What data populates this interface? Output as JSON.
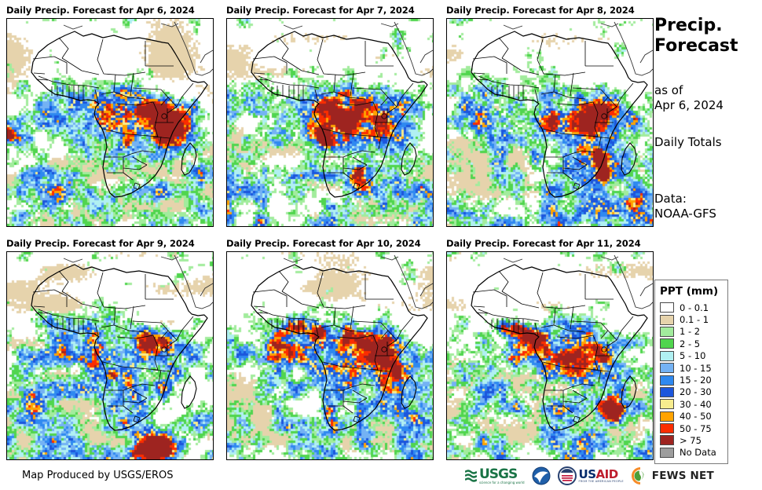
{
  "header": {
    "title_line1": "Precip.",
    "title_line2": "Forecast",
    "as_of_label": "as of",
    "as_of_date": "Apr 6, 2024",
    "totals_label": "Daily Totals",
    "data_label": "Data:",
    "data_source": "NOAA-GFS"
  },
  "panels": [
    {
      "title": "Daily Precip. Forecast for Apr 6, 2024",
      "seed": 101,
      "hotspots": [
        [
          150,
          118,
          30,
          0.2
        ],
        [
          196,
          126,
          16,
          0.22
        ],
        [
          206,
          128,
          5,
          0.5
        ],
        [
          212,
          150,
          12,
          0.25
        ],
        [
          2,
          148,
          7,
          0.45
        ],
        [
          15,
          252,
          10,
          0.35
        ],
        [
          60,
          228,
          20,
          0.12
        ]
      ]
    },
    {
      "title": "Daily Precip. Forecast for Apr 7, 2024",
      "seed": 202,
      "hotspots": [
        [
          140,
          128,
          32,
          0.22
        ],
        [
          122,
          148,
          8,
          0.42
        ],
        [
          130,
          158,
          6,
          0.4
        ],
        [
          168,
          205,
          12,
          0.4
        ],
        [
          173,
          196,
          8,
          0.35
        ],
        [
          225,
          30,
          14,
          0.25
        ],
        [
          200,
          140,
          18,
          0.18
        ]
      ]
    },
    {
      "title": "Daily Precip. Forecast for Apr 8, 2024",
      "seed": 303,
      "hotspots": [
        [
          180,
          140,
          26,
          0.22
        ],
        [
          196,
          185,
          7,
          0.5
        ],
        [
          200,
          200,
          6,
          0.48
        ],
        [
          193,
          172,
          5,
          0.4
        ],
        [
          225,
          125,
          15,
          0.2
        ],
        [
          230,
          225,
          22,
          0.15
        ],
        [
          225,
          28,
          12,
          0.2
        ]
      ]
    },
    {
      "title": "Daily Precip. Forecast for Apr 9, 2024",
      "seed": 404,
      "hotspots": [
        [
          195,
          115,
          18,
          0.25
        ],
        [
          140,
          150,
          20,
          0.18
        ],
        [
          135,
          155,
          5,
          0.35
        ],
        [
          185,
          250,
          16,
          0.48
        ],
        [
          200,
          245,
          10,
          0.4
        ],
        [
          170,
          252,
          10,
          0.35
        ],
        [
          222,
          30,
          10,
          0.3
        ],
        [
          30,
          195,
          14,
          0.25
        ]
      ]
    },
    {
      "title": "Daily Precip. Forecast for Apr 10, 2024",
      "seed": 505,
      "hotspots": [
        [
          95,
          100,
          14,
          0.3
        ],
        [
          115,
          103,
          8,
          0.35
        ],
        [
          125,
          108,
          10,
          0.28
        ],
        [
          155,
          130,
          22,
          0.18
        ],
        [
          200,
          130,
          16,
          0.28
        ],
        [
          205,
          155,
          12,
          0.25
        ],
        [
          235,
          32,
          12,
          0.3
        ],
        [
          240,
          215,
          12,
          0.25
        ]
      ]
    },
    {
      "title": "Daily Precip. Forecast for Apr 11, 2024",
      "seed": 606,
      "hotspots": [
        [
          85,
          98,
          10,
          0.5
        ],
        [
          102,
          104,
          7,
          0.45
        ],
        [
          70,
          96,
          5,
          0.4
        ],
        [
          118,
          110,
          10,
          0.3
        ],
        [
          165,
          148,
          18,
          0.25
        ],
        [
          208,
          198,
          9,
          0.5
        ],
        [
          215,
          212,
          8,
          0.45
        ],
        [
          228,
          60,
          10,
          0.25
        ],
        [
          140,
          252,
          26,
          0.15
        ]
      ]
    }
  ],
  "legend": {
    "title": "PPT (mm)",
    "items": [
      {
        "label": "0 - 0.1",
        "color": "#ffffff"
      },
      {
        "label": "0.1 - 1",
        "color": "#e6d3ac"
      },
      {
        "label": "1 - 2",
        "color": "#a2ec9d"
      },
      {
        "label": "2 - 5",
        "color": "#50d54e"
      },
      {
        "label": "5 - 10",
        "color": "#b0f0f2"
      },
      {
        "label": "10 - 15",
        "color": "#74b2f4"
      },
      {
        "label": "15 - 20",
        "color": "#2f89f0"
      },
      {
        "label": "20 - 30",
        "color": "#1c56dc"
      },
      {
        "label": "30 - 40",
        "color": "#f7ec8e"
      },
      {
        "label": "40 - 50",
        "color": "#ffa300"
      },
      {
        "label": "50 - 75",
        "color": "#fb2d00"
      },
      {
        "label": "> 75",
        "color": "#9e2420"
      },
      {
        "label": "No Data",
        "color": "#9d9d9d"
      }
    ]
  },
  "footer": {
    "credit": "Map Produced by USGS/EROS",
    "usgs_label": "USGS",
    "usgs_tagline": "science for a changing world",
    "usaid_us": "US",
    "usaid_aid": "AID",
    "usaid_tagline": "FROM THE AMERICAN PEOPLE",
    "fews_label": "FEWS NET"
  },
  "map_colors": {
    "coastline": "#000000",
    "frame": "#000000"
  }
}
